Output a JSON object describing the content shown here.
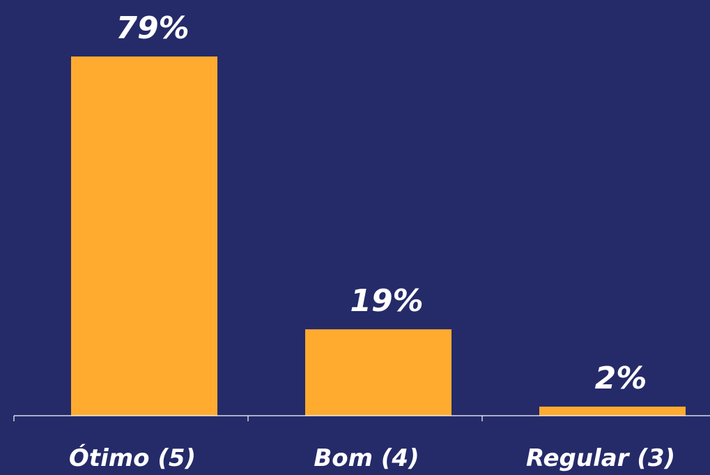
{
  "chart_data": {
    "type": "bar",
    "categories": [
      "Ótimo (5)",
      "Bom (4)",
      "Regular (3)"
    ],
    "values": [
      79,
      19,
      2
    ],
    "data_labels": [
      "79%",
      "19%",
      "2%"
    ],
    "ylim": [
      0,
      100
    ],
    "grid": false,
    "legend": "none"
  },
  "colors": {
    "background": "#252a69",
    "bar": "#ffab30",
    "text": "#ffffff",
    "axis": "#ffffff"
  }
}
